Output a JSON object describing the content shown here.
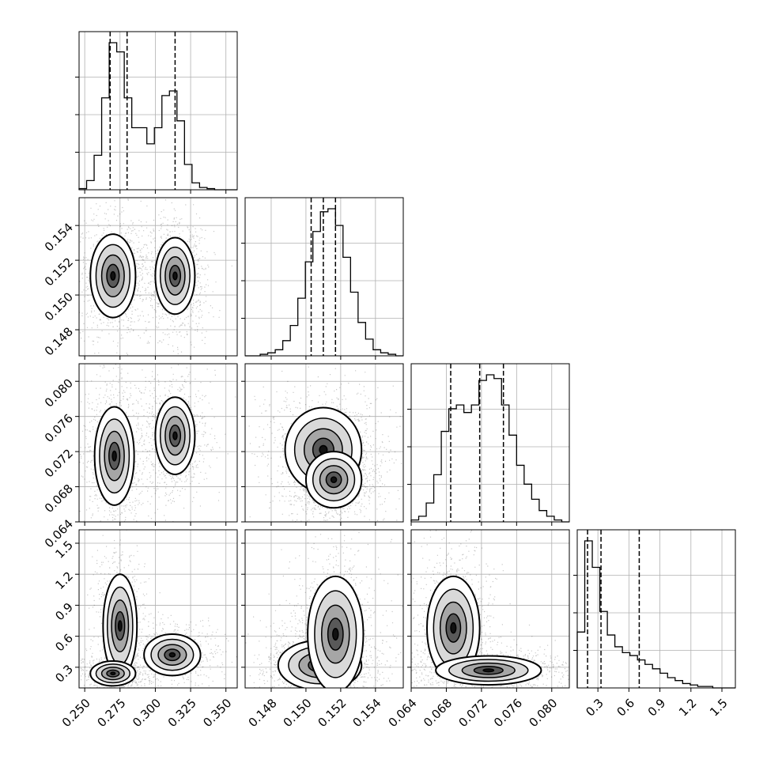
{
  "chart_data": {
    "type": "corner",
    "grid": true,
    "parameters": [
      {
        "ticks": [
          "0.250",
          "0.275",
          "0.300",
          "0.325",
          "0.350"
        ],
        "range": [
          0.246,
          0.358
        ],
        "tick_values": [
          0.25,
          0.275,
          0.3,
          0.325,
          0.35
        ]
      },
      {
        "ticks": [
          "0.148",
          "0.150",
          "0.152",
          "0.154"
        ],
        "range": [
          0.1465,
          0.1556
        ],
        "tick_values": [
          0.148,
          0.15,
          0.152,
          0.154
        ]
      },
      {
        "ticks": [
          "0.064",
          "0.068",
          "0.072",
          "0.076",
          "0.080"
        ],
        "range": [
          0.064,
          0.082
        ],
        "tick_values": [
          0.064,
          0.068,
          0.072,
          0.076,
          0.08
        ]
      },
      {
        "ticks": [
          "0.3",
          "0.6",
          "0.9",
          "1.2",
          "1.5"
        ],
        "range": [
          0.1,
          1.63
        ],
        "tick_values": [
          0.3,
          0.6,
          0.9,
          1.2,
          1.5
        ]
      }
    ],
    "quantiles": [
      [
        0.268,
        0.28,
        0.314
      ],
      [
        0.1503,
        0.151,
        0.1517
      ],
      [
        0.0685,
        0.0718,
        0.0745
      ],
      [
        0.2,
        0.33,
        0.7
      ]
    ],
    "histograms": [
      {
        "bins": [
          0.246,
          0.358
        ],
        "counts": [
          1,
          8,
          30,
          80,
          128,
          120,
          80,
          54,
          54,
          40,
          54,
          82,
          86,
          60,
          22,
          6,
          2,
          1,
          0,
          0,
          0
        ]
      },
      {
        "bins": [
          0.1465,
          0.1556
        ],
        "counts": [
          0,
          0,
          1,
          2,
          4,
          10,
          20,
          38,
          62,
          82,
          95,
          97,
          86,
          65,
          42,
          22,
          11,
          4,
          2,
          1,
          0
        ]
      },
      {
        "bins": [
          0.064,
          0.082
        ],
        "counts": [
          1,
          3,
          10,
          25,
          48,
          60,
          62,
          58,
          62,
          75,
          78,
          76,
          62,
          46,
          30,
          20,
          12,
          6,
          3,
          1,
          0
        ]
      },
      {
        "bins": [
          0.1,
          1.63
        ],
        "counts": [
          38,
          100,
          82,
          52,
          36,
          28,
          24,
          22,
          19,
          16,
          13,
          10,
          7,
          5,
          3,
          2,
          1,
          1,
          0,
          0,
          0
        ]
      }
    ],
    "contours": [
      {
        "row": 1,
        "col": 0,
        "modes": [
          {
            "x": 0.27,
            "y": 0.1511,
            "sx": 0.008,
            "sy": 0.0012
          },
          {
            "x": 0.314,
            "y": 0.1511,
            "sx": 0.007,
            "sy": 0.0011
          }
        ]
      },
      {
        "row": 2,
        "col": 0,
        "modes": [
          {
            "x": 0.271,
            "y": 0.0715,
            "sx": 0.007,
            "sy": 0.0028
          },
          {
            "x": 0.314,
            "y": 0.0738,
            "sx": 0.007,
            "sy": 0.0022
          }
        ]
      },
      {
        "row": 2,
        "col": 1,
        "modes": [
          {
            "x": 0.151,
            "y": 0.0722,
            "sx": 0.0011,
            "sy": 0.0024
          },
          {
            "x": 0.1516,
            "y": 0.0688,
            "sx": 0.0008,
            "sy": 0.0016
          }
        ]
      },
      {
        "row": 3,
        "col": 0,
        "modes": [
          {
            "x": 0.275,
            "y": 0.7,
            "sx": 0.006,
            "sy": 0.25
          },
          {
            "x": 0.312,
            "y": 0.42,
            "sx": 0.01,
            "sy": 0.1
          },
          {
            "x": 0.27,
            "y": 0.24,
            "sx": 0.008,
            "sy": 0.06
          }
        ]
      },
      {
        "row": 3,
        "col": 1,
        "modes": [
          {
            "x": 0.1508,
            "y": 0.32,
            "sx": 0.0012,
            "sy": 0.12
          },
          {
            "x": 0.1517,
            "y": 0.62,
            "sx": 0.0008,
            "sy": 0.28
          }
        ]
      },
      {
        "row": 3,
        "col": 2,
        "modes": [
          {
            "x": 0.0688,
            "y": 0.68,
            "sx": 0.0015,
            "sy": 0.25
          },
          {
            "x": 0.0728,
            "y": 0.27,
            "sx": 0.003,
            "sy": 0.07
          }
        ]
      }
    ]
  }
}
